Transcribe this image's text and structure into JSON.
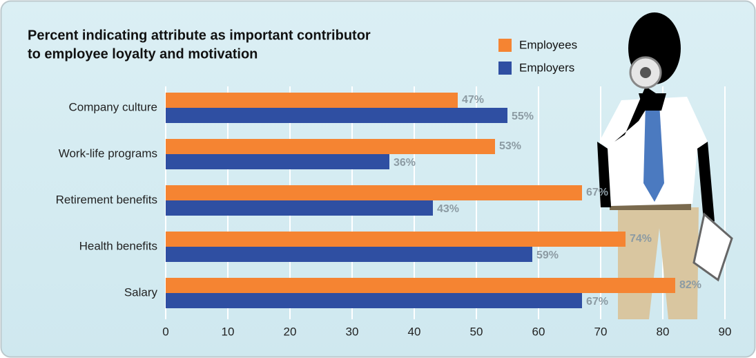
{
  "chart_data": {
    "type": "hbar",
    "title": [
      "Percent indicating attribute as important contributor",
      "to employee loyalty and motivation"
    ],
    "categories": [
      "Company culture",
      "Work-life programs",
      "Retirement benefits",
      "Health benefits",
      "Salary"
    ],
    "series": [
      {
        "name": "Employees",
        "color": "#f58432",
        "values": [
          47,
          53,
          67,
          74,
          82
        ],
        "value_labels": [
          "47%",
          "53%",
          "67%",
          "74%",
          "82%"
        ]
      },
      {
        "name": "Employers",
        "color": "#2f4fa2",
        "values": [
          55,
          36,
          43,
          59,
          67
        ],
        "value_labels": [
          "55%",
          "36%",
          "43%",
          "59%",
          "67%"
        ]
      }
    ],
    "xlim": [
      0,
      90
    ],
    "xticks": [
      0,
      10,
      20,
      30,
      40,
      50,
      60,
      70,
      80,
      90
    ],
    "grid": true
  }
}
